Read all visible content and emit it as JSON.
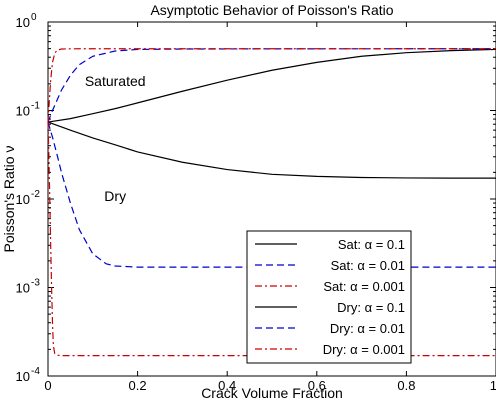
{
  "chart_data": {
    "type": "line",
    "title": "Asymptotic Behavior of Poisson's Ratio",
    "xlabel": "Crack Volume Fraction",
    "ylabel": "Poisson's Ratio ν",
    "xlim": [
      0,
      1
    ],
    "ylim": [
      0.0001,
      1
    ],
    "yscale": "log",
    "grid": false,
    "legend_position": "lower-right",
    "x_ticks": [
      "0",
      "0.2",
      "0.4",
      "0.6",
      "0.8",
      "1"
    ],
    "y_ticks": [
      {
        "base": "10",
        "exp": "0"
      },
      {
        "base": "10",
        "exp": "-1"
      },
      {
        "base": "10",
        "exp": "-2"
      },
      {
        "base": "10",
        "exp": "-3"
      },
      {
        "base": "10",
        "exp": "-4"
      }
    ],
    "annotations": [
      {
        "text": "Saturated",
        "x": 0.15,
        "y": 0.19
      },
      {
        "text": "Dry",
        "x": 0.15,
        "y": 0.0095
      }
    ],
    "series": [
      {
        "name": "Sat: α = 0.1",
        "color": "#000000",
        "dash": "solid",
        "x": [
          0,
          0.05,
          0.1,
          0.15,
          0.2,
          0.3,
          0.4,
          0.5,
          0.6,
          0.7,
          0.8,
          0.9,
          1.0
        ],
        "y": [
          0.074,
          0.081,
          0.092,
          0.105,
          0.122,
          0.165,
          0.22,
          0.285,
          0.35,
          0.41,
          0.45,
          0.475,
          0.49
        ]
      },
      {
        "name": "Sat: α = 0.01",
        "color": "#0000cc",
        "dash": "dashed",
        "x": [
          0,
          0.01,
          0.02,
          0.03,
          0.05,
          0.07,
          0.1,
          0.15,
          0.2,
          0.3,
          0.5,
          1.0
        ],
        "y": [
          0.074,
          0.1,
          0.13,
          0.17,
          0.25,
          0.33,
          0.41,
          0.47,
          0.49,
          0.495,
          0.497,
          0.499
        ]
      },
      {
        "name": "Sat: α = 0.001",
        "color": "#cc0000",
        "dash": "dashdot",
        "x": [
          0,
          0.003,
          0.006,
          0.01,
          0.015,
          0.02,
          0.03,
          0.05,
          0.1,
          0.5,
          1.0
        ],
        "y": [
          0.074,
          0.13,
          0.22,
          0.35,
          0.44,
          0.48,
          0.495,
          0.498,
          0.499,
          0.499,
          0.499
        ]
      },
      {
        "name": "Dry: α = 0.1",
        "color": "#000000",
        "dash": "solid",
        "x": [
          0,
          0.05,
          0.1,
          0.15,
          0.2,
          0.3,
          0.4,
          0.5,
          0.6,
          0.7,
          0.8,
          0.9,
          1.0
        ],
        "y": [
          0.074,
          0.06,
          0.049,
          0.041,
          0.034,
          0.026,
          0.0215,
          0.019,
          0.018,
          0.0175,
          0.0173,
          0.0172,
          0.0172
        ]
      },
      {
        "name": "Dry: α = 0.01",
        "color": "#0000cc",
        "dash": "dashed",
        "x": [
          0,
          0.01,
          0.02,
          0.03,
          0.05,
          0.07,
          0.1,
          0.13,
          0.15,
          0.2,
          0.3,
          0.5,
          1.0
        ],
        "y": [
          0.074,
          0.05,
          0.032,
          0.02,
          0.009,
          0.0045,
          0.0024,
          0.00185,
          0.00175,
          0.0017,
          0.0017,
          0.0017,
          0.0017
        ]
      },
      {
        "name": "Dry: α = 0.001",
        "color": "#cc0000",
        "dash": "dashdot",
        "x": [
          0,
          0.002,
          0.004,
          0.006,
          0.008,
          0.01,
          0.012,
          0.015,
          0.02,
          0.03,
          0.05,
          0.5,
          1.0
        ],
        "y": [
          0.074,
          0.03,
          0.01,
          0.003,
          0.001,
          0.0004,
          0.00022,
          0.00018,
          0.000172,
          0.00017,
          0.00017,
          0.00017,
          0.00017
        ]
      }
    ]
  }
}
